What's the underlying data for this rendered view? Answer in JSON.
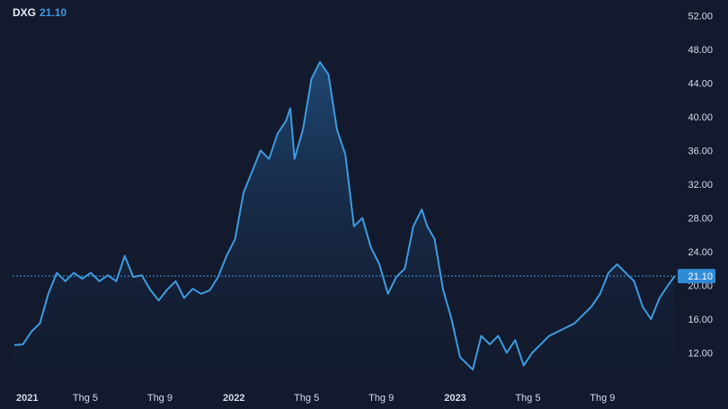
{
  "legend": {
    "symbol": "DXG",
    "last_value": "21.10"
  },
  "colors": {
    "background": "#131a2e",
    "line": "#3d9be0",
    "area_top": "#1f4a77",
    "area_bottom": "#131a2e",
    "price_tag": "#2e8bd6"
  },
  "chart_data": {
    "type": "area",
    "title": "",
    "xlabel": "",
    "ylabel": "",
    "series": [
      {
        "name": "DXG",
        "x": [
          "2021-01-04",
          "2021-01-18",
          "2021-02-01",
          "2021-02-15",
          "2021-03-01",
          "2021-03-15",
          "2021-03-29",
          "2021-04-12",
          "2021-04-26",
          "2021-05-10",
          "2021-05-24",
          "2021-06-07",
          "2021-06-21",
          "2021-07-05",
          "2021-07-19",
          "2021-08-02",
          "2021-08-16",
          "2021-08-30",
          "2021-09-13",
          "2021-09-27",
          "2021-10-11",
          "2021-10-25",
          "2021-11-08",
          "2021-11-22",
          "2021-12-06",
          "2021-12-20",
          "2022-01-03",
          "2022-01-17",
          "2022-01-31",
          "2022-02-14",
          "2022-02-28",
          "2022-03-14",
          "2022-03-28",
          "2022-04-04",
          "2022-04-11",
          "2022-04-25",
          "2022-05-09",
          "2022-05-23",
          "2022-06-06",
          "2022-06-20",
          "2022-07-04",
          "2022-07-18",
          "2022-08-01",
          "2022-08-15",
          "2022-08-29",
          "2022-09-12",
          "2022-09-26",
          "2022-10-10",
          "2022-10-24",
          "2022-11-07",
          "2022-11-16",
          "2022-11-28",
          "2022-12-12",
          "2022-12-26",
          "2023-01-09",
          "2023-01-30",
          "2023-02-13",
          "2023-02-27",
          "2023-03-13",
          "2023-03-27",
          "2023-04-10",
          "2023-04-24",
          "2023-05-08",
          "2023-05-22",
          "2023-06-05",
          "2023-06-19",
          "2023-07-03",
          "2023-07-17",
          "2023-07-31",
          "2023-08-14",
          "2023-08-28",
          "2023-09-11",
          "2023-09-25",
          "2023-10-09",
          "2023-10-23",
          "2023-11-06",
          "2023-11-20",
          "2023-12-04",
          "2023-12-18",
          "2023-12-29"
        ],
        "values": [
          12.9,
          13.0,
          14.5,
          15.5,
          19.0,
          21.5,
          20.5,
          21.5,
          20.8,
          21.5,
          20.5,
          21.2,
          20.5,
          23.5,
          21.0,
          21.2,
          19.5,
          18.2,
          19.5,
          20.5,
          18.5,
          19.6,
          19.0,
          19.4,
          21.0,
          23.5,
          25.5,
          31.0,
          33.5,
          36.0,
          35.0,
          38.0,
          39.5,
          41.0,
          35.0,
          38.5,
          44.5,
          46.5,
          45.0,
          38.5,
          35.5,
          27.0,
          28.0,
          24.5,
          22.5,
          19.0,
          21.0,
          22.0,
          27.0,
          29.0,
          27.0,
          25.5,
          19.5,
          16.0,
          11.5,
          10.0,
          14.0,
          13.0,
          14.0,
          12.0,
          13.5,
          10.5,
          12.0,
          13.0,
          14.0,
          14.5,
          15.0,
          15.5,
          16.5,
          17.5,
          19.0,
          21.5,
          22.5,
          21.5,
          20.5,
          17.5,
          16.0,
          18.5,
          20.0,
          21.1
        ]
      }
    ],
    "y_ticks": [
      "12.00",
      "16.00",
      "20.00",
      "24.00",
      "28.00",
      "32.00",
      "36.00",
      "40.00",
      "44.00",
      "48.00",
      "52.00"
    ],
    "ylim": [
      8,
      53
    ],
    "xlim": [
      "2021-01-01",
      "2023-12-31"
    ],
    "x_ticks": [
      {
        "label": "2021",
        "date": "2021-01-01",
        "bold": true
      },
      {
        "label": "Thg 5",
        "date": "2021-05-01",
        "bold": false
      },
      {
        "label": "Thg 9",
        "date": "2021-09-01",
        "bold": false
      },
      {
        "label": "2022",
        "date": "2022-01-01",
        "bold": true
      },
      {
        "label": "Thg 5",
        "date": "2022-05-01",
        "bold": false
      },
      {
        "label": "Thg 9",
        "date": "2022-09-01",
        "bold": false
      },
      {
        "label": "2023",
        "date": "2023-01-01",
        "bold": true
      },
      {
        "label": "Thg 5",
        "date": "2023-05-01",
        "bold": false
      },
      {
        "label": "Thg 9",
        "date": "2023-09-01",
        "bold": false
      }
    ],
    "last_price": 21.1,
    "last_price_label": "21.10",
    "grid": false,
    "legend_position": "top-left"
  }
}
